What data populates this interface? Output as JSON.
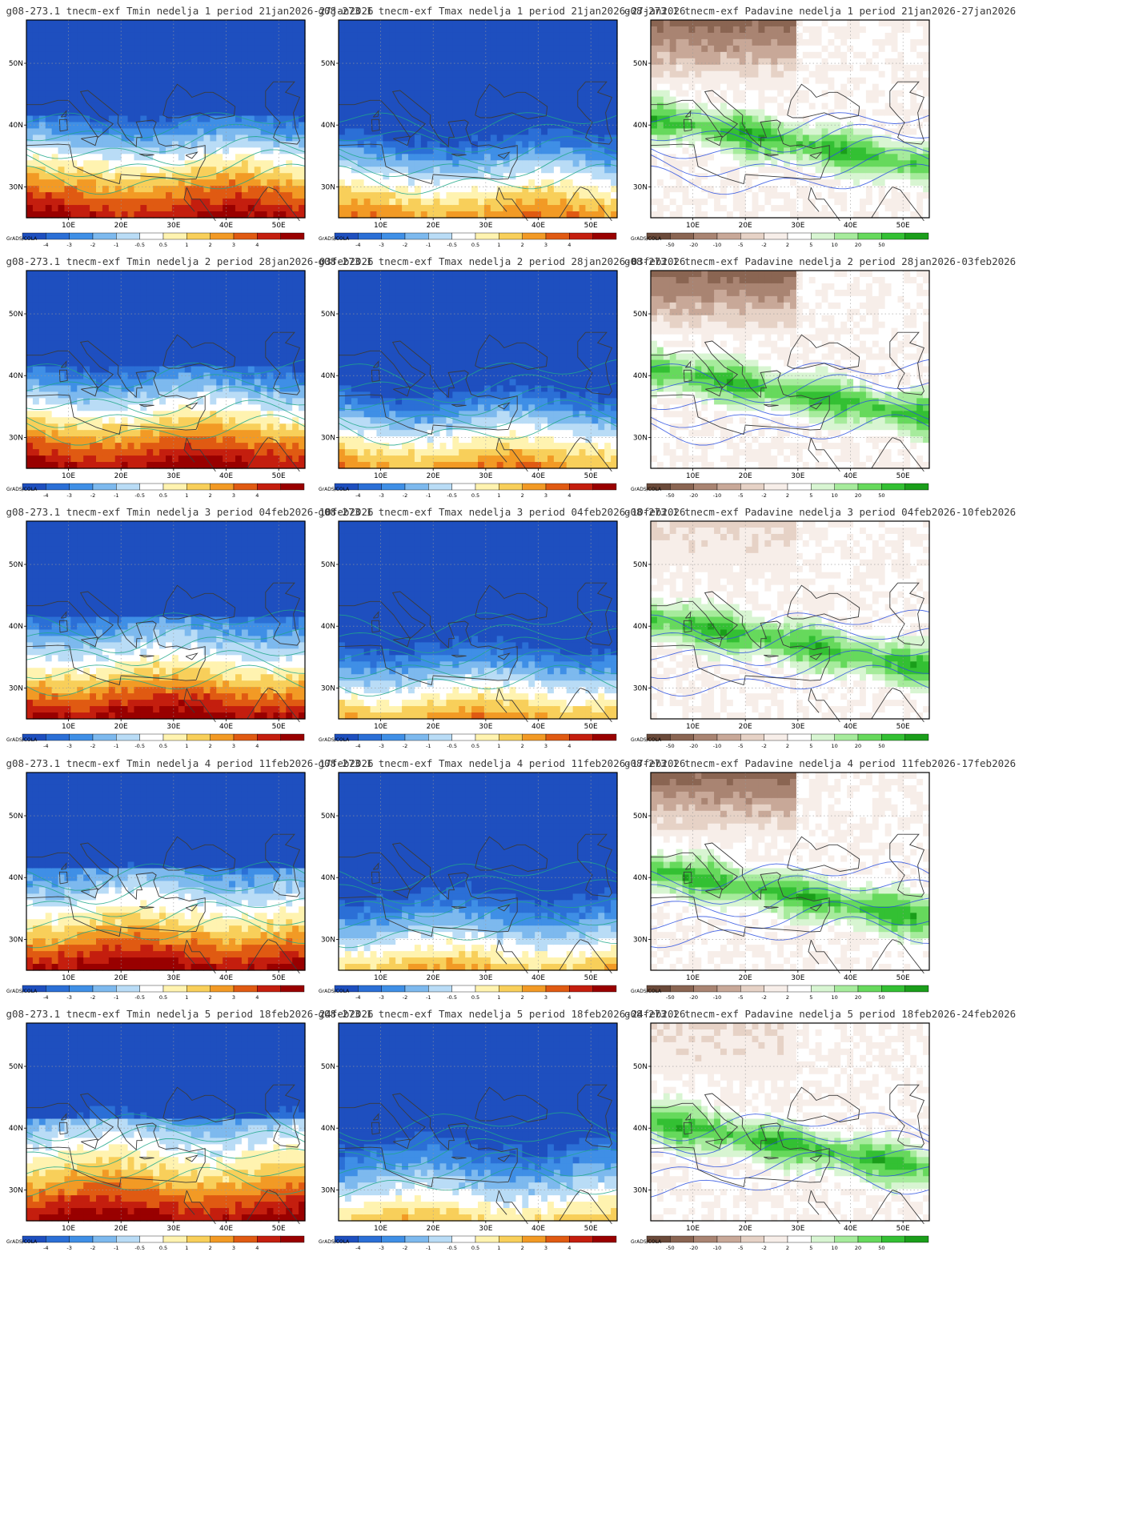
{
  "figure": {
    "grads_label": "GrADS/COLA",
    "lon_ticks": [
      "10E",
      "20E",
      "30E",
      "40E",
      "50E"
    ],
    "lat_ticks": [
      "50N",
      "40N",
      "30N"
    ]
  },
  "colorbars": {
    "temperature": {
      "labels": [
        "-4",
        "-3",
        "-2",
        "-1",
        "-0.5",
        "0.5",
        "1",
        "2",
        "3",
        "4"
      ],
      "colors": [
        "#1e4fbf",
        "#2b6fd6",
        "#3f8fe6",
        "#7db9ee",
        "#b9dcf6",
        "#ffffff",
        "#fff3b0",
        "#f8cf5a",
        "#f29a25",
        "#e05a12",
        "#c41e0e",
        "#990000"
      ]
    },
    "precipitation": {
      "labels": [
        "-50",
        "-20",
        "-10",
        "-5",
        "-2",
        "2",
        "5",
        "10",
        "20",
        "50"
      ],
      "colors": [
        "#6b4a3a",
        "#8a6552",
        "#a98472",
        "#c8a898",
        "#e6d2c6",
        "#f7eee9",
        "#ffffff",
        "#d8f5d2",
        "#a6eb9c",
        "#66d95c",
        "#33c033",
        "#1a9e1a"
      ]
    }
  },
  "panels": [
    {
      "title": "g08-273.1 tnecm-exf Tmin nedelja 1 period 21jan2026-27jan2026",
      "variable": "Tmin",
      "colorbar": "temperature"
    },
    {
      "title": "g08-273.1 tnecm-exf Tmax nedelja 1 period 21jan2026-27jan2026",
      "variable": "Tmax",
      "colorbar": "temperature"
    },
    {
      "title": "g08-273.1 tnecm-exf Padavine nedelja 1 period 21jan2026-27jan2026",
      "variable": "Padavine",
      "colorbar": "precipitation"
    },
    {
      "title": "g08-273.1 tnecm-exf Tmin nedelja 2 period 28jan2026-03feb2026",
      "variable": "Tmin",
      "colorbar": "temperature"
    },
    {
      "title": "g08-273.1 tnecm-exf Tmax nedelja 2 period 28jan2026-03feb2026",
      "variable": "Tmax",
      "colorbar": "temperature"
    },
    {
      "title": "g08-273.1 tnecm-exf Padavine nedelja 2 period 28jan2026-03feb2026",
      "variable": "Padavine",
      "colorbar": "precipitation"
    },
    {
      "title": "g08-273.1 tnecm-exf Tmin nedelja 3 period 04feb2026-10feb2026",
      "variable": "Tmin",
      "colorbar": "temperature"
    },
    {
      "title": "g08-273.1 tnecm-exf Tmax nedelja 3 period 04feb2026-10feb2026",
      "variable": "Tmax",
      "colorbar": "temperature"
    },
    {
      "title": "g08-273.1 tnecm-exf Padavine nedelja 3 period 04feb2026-10feb2026",
      "variable": "Padavine",
      "colorbar": "precipitation"
    },
    {
      "title": "g08-273.1 tnecm-exf Tmin nedelja 4 period 11feb2026-17feb2026",
      "variable": "Tmin",
      "colorbar": "temperature"
    },
    {
      "title": "g08-273.1 tnecm-exf Tmax nedelja 4 period 11feb2026-17feb2026",
      "variable": "Tmax",
      "colorbar": "temperature"
    },
    {
      "title": "g08-273.1 tnecm-exf Padavine nedelja 4 period 11feb2026-17feb2026",
      "variable": "Padavine",
      "colorbar": "precipitation"
    },
    {
      "title": "g08-273.1 tnecm-exf Tmin nedelja 5 period 18feb2026-24feb2026",
      "variable": "Tmin",
      "colorbar": "temperature"
    },
    {
      "title": "g08-273.1 tnecm-exf Tmax nedelja 5 period 18feb2026-24feb2026",
      "variable": "Tmax",
      "colorbar": "temperature"
    },
    {
      "title": "g08-273.1 tnecm-exf Padavine nedelja 5 period 18feb2026-24feb2026",
      "variable": "Padavine",
      "colorbar": "precipitation"
    }
  ]
}
